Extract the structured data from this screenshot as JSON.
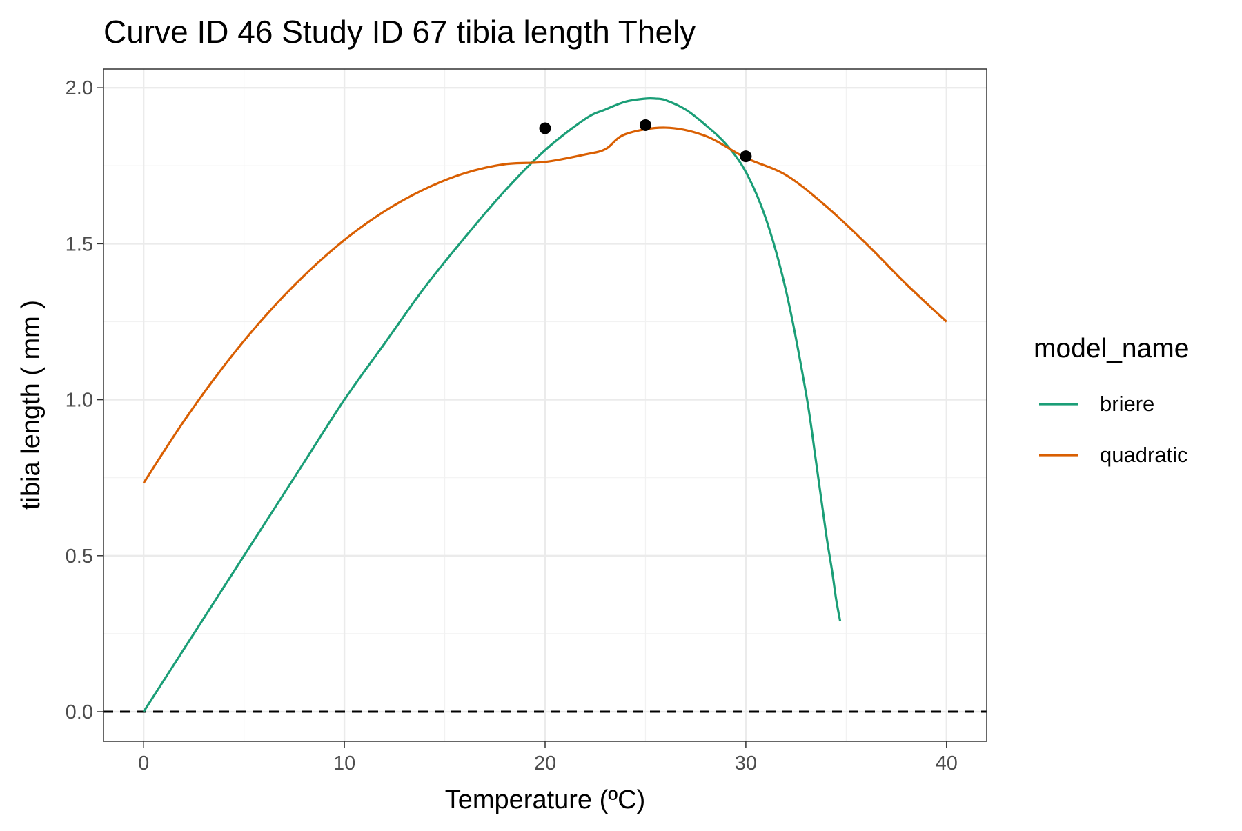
{
  "chart_data": {
    "type": "line",
    "title": "Curve ID 46 Study ID 67 tibia length Thely",
    "xlabel": "Temperature (ºC)",
    "ylabel": "tibia length ( mm )",
    "xlim": [
      -2,
      42
    ],
    "ylim": [
      -0.095,
      2.06
    ],
    "x_ticks": [
      0,
      10,
      20,
      30,
      40
    ],
    "x_tick_labels": [
      "0",
      "10",
      "20",
      "30",
      "40"
    ],
    "y_ticks": [
      0,
      0.5,
      1,
      1.5,
      2
    ],
    "y_tick_labels": [
      "0.0",
      "0.5",
      "1.0",
      "1.5",
      "2.0"
    ],
    "grid": true,
    "reference_line": {
      "y": 0,
      "style": "dashed",
      "color": "#000000"
    },
    "legend": {
      "title": "model_name",
      "position": "right"
    },
    "series": [
      {
        "name": "briere",
        "color": "#1b9e77",
        "x": [
          0,
          2,
          4,
          6,
          8,
          10,
          12,
          14,
          16,
          18,
          20,
          22,
          23,
          24,
          25,
          25.5,
          26,
          27,
          28,
          29,
          30,
          31,
          32,
          33,
          33.5,
          34,
          34.3,
          34.5,
          34.7
        ],
        "y": [
          0,
          0.2,
          0.4,
          0.6,
          0.8,
          1.0,
          1.18,
          1.36,
          1.52,
          1.67,
          1.8,
          1.9,
          1.93,
          1.955,
          1.965,
          1.965,
          1.96,
          1.93,
          1.88,
          1.82,
          1.73,
          1.58,
          1.35,
          1.02,
          0.8,
          0.57,
          0.45,
          0.36,
          0.29
        ]
      },
      {
        "name": "quadratic",
        "color": "#d95f02",
        "x": [
          0,
          2,
          4,
          6,
          8,
          10,
          12,
          14,
          16,
          18,
          20,
          22,
          23,
          24,
          26,
          28,
          30,
          32,
          34,
          36,
          38,
          40
        ],
        "y": [
          0.733,
          0.931,
          1.108,
          1.264,
          1.398,
          1.512,
          1.604,
          1.675,
          1.726,
          1.755,
          1.762,
          1.786,
          1.803,
          1.851,
          1.872,
          1.845,
          1.775,
          1.72,
          1.62,
          1.5,
          1.37,
          1.25
        ]
      }
    ],
    "points": {
      "color": "#000000",
      "x": [
        20,
        25,
        30
      ],
      "y": [
        1.87,
        1.88,
        1.78
      ]
    }
  }
}
